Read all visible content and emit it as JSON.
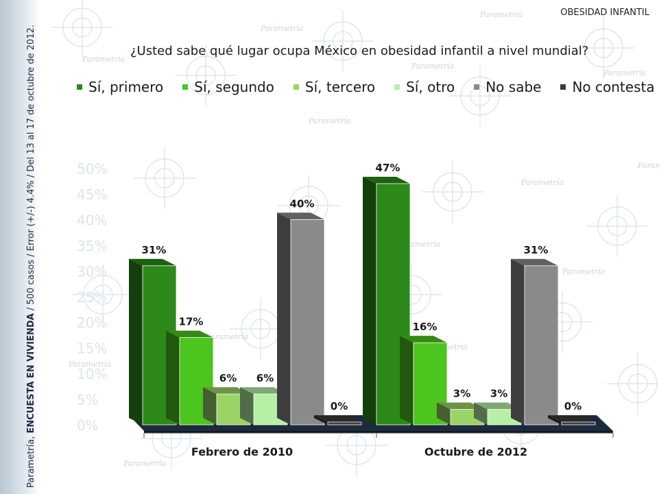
{
  "topic_label": "OBESIDAD INFANTIL",
  "question": "¿Usted sabe qué lugar ocupa México en obesidad infantil a nivel mundial?",
  "side_note": {
    "source": "Parametría,",
    "survey": "ENCUESTA EN VIVIENDA",
    "details": "/ 500 casos / Error (+/-) 4.4% / Del 13 al 17 de octubre de 2012."
  },
  "watermark_text": "Parametría",
  "chart_data": {
    "type": "bar",
    "categories": [
      "Febrero de 2010",
      "Octubre de 2012"
    ],
    "series": [
      {
        "name": "Sí, primero",
        "values": [
          31,
          47
        ],
        "color": "#2d8a1a"
      },
      {
        "name": "Sí, segundo",
        "values": [
          17,
          16
        ],
        "color": "#4cc51e"
      },
      {
        "name": "Sí, tercero",
        "values": [
          6,
          3
        ],
        "color": "#9ad466"
      },
      {
        "name": "Sí, otro",
        "values": [
          6,
          3
        ],
        "color": "#b6f0a4"
      },
      {
        "name": "No sabe",
        "values": [
          40,
          31
        ],
        "color": "#8a8a8a"
      },
      {
        "name": "No contesta",
        "values": [
          0,
          0
        ],
        "color": "#3b3b3b"
      }
    ],
    "value_suffix": "%",
    "ylim": [
      0,
      50
    ],
    "background_ticks": [
      "0%",
      "5%",
      "10%",
      "15%",
      "20%",
      "25%",
      "30%",
      "35%",
      "40%",
      "45%",
      "50%"
    ],
    "legend_position": "top",
    "grid": false
  }
}
